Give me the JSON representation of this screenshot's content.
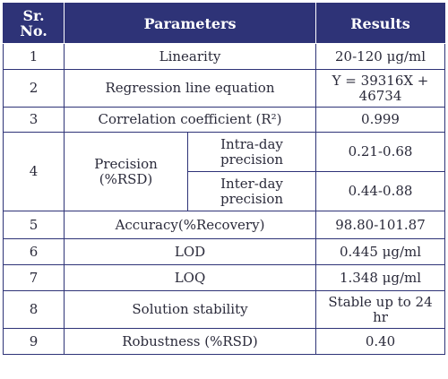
{
  "header": {
    "srno_line1": "Sr.",
    "srno_line2": "No.",
    "parameters": "Parameters",
    "results": "Results"
  },
  "rows": [
    {
      "sr": "1",
      "parameter": "Linearity",
      "result": "20-120 μg/ml"
    },
    {
      "sr": "2",
      "parameter": "Regression line equation",
      "result": "Y = 39316X + 46734"
    },
    {
      "sr": "3",
      "parameter": "Correlation coefficient (R²)",
      "result": "0.999"
    },
    {
      "sr": "4",
      "parameter": "Precision (%RSD)",
      "sub": [
        {
          "label": "Intra-day precision",
          "result": "0.21-0.68"
        },
        {
          "label": "Inter-day precision",
          "result": "0.44-0.88"
        }
      ]
    },
    {
      "sr": "5",
      "parameter": "Accuracy(%Recovery)",
      "result": "98.80-101.87"
    },
    {
      "sr": "6",
      "parameter": "LOD",
      "result": "0.445 μg/ml"
    },
    {
      "sr": "7",
      "parameter": "LOQ",
      "result": "1.348 μg/ml"
    },
    {
      "sr": "8",
      "parameter": "Solution stability",
      "result": "Stable up to 24 hr"
    },
    {
      "sr": "9",
      "parameter": "Robustness (%RSD)",
      "result": "0.40"
    }
  ],
  "colors": {
    "header_bg": "#2e3377",
    "border": "#2e3377"
  }
}
